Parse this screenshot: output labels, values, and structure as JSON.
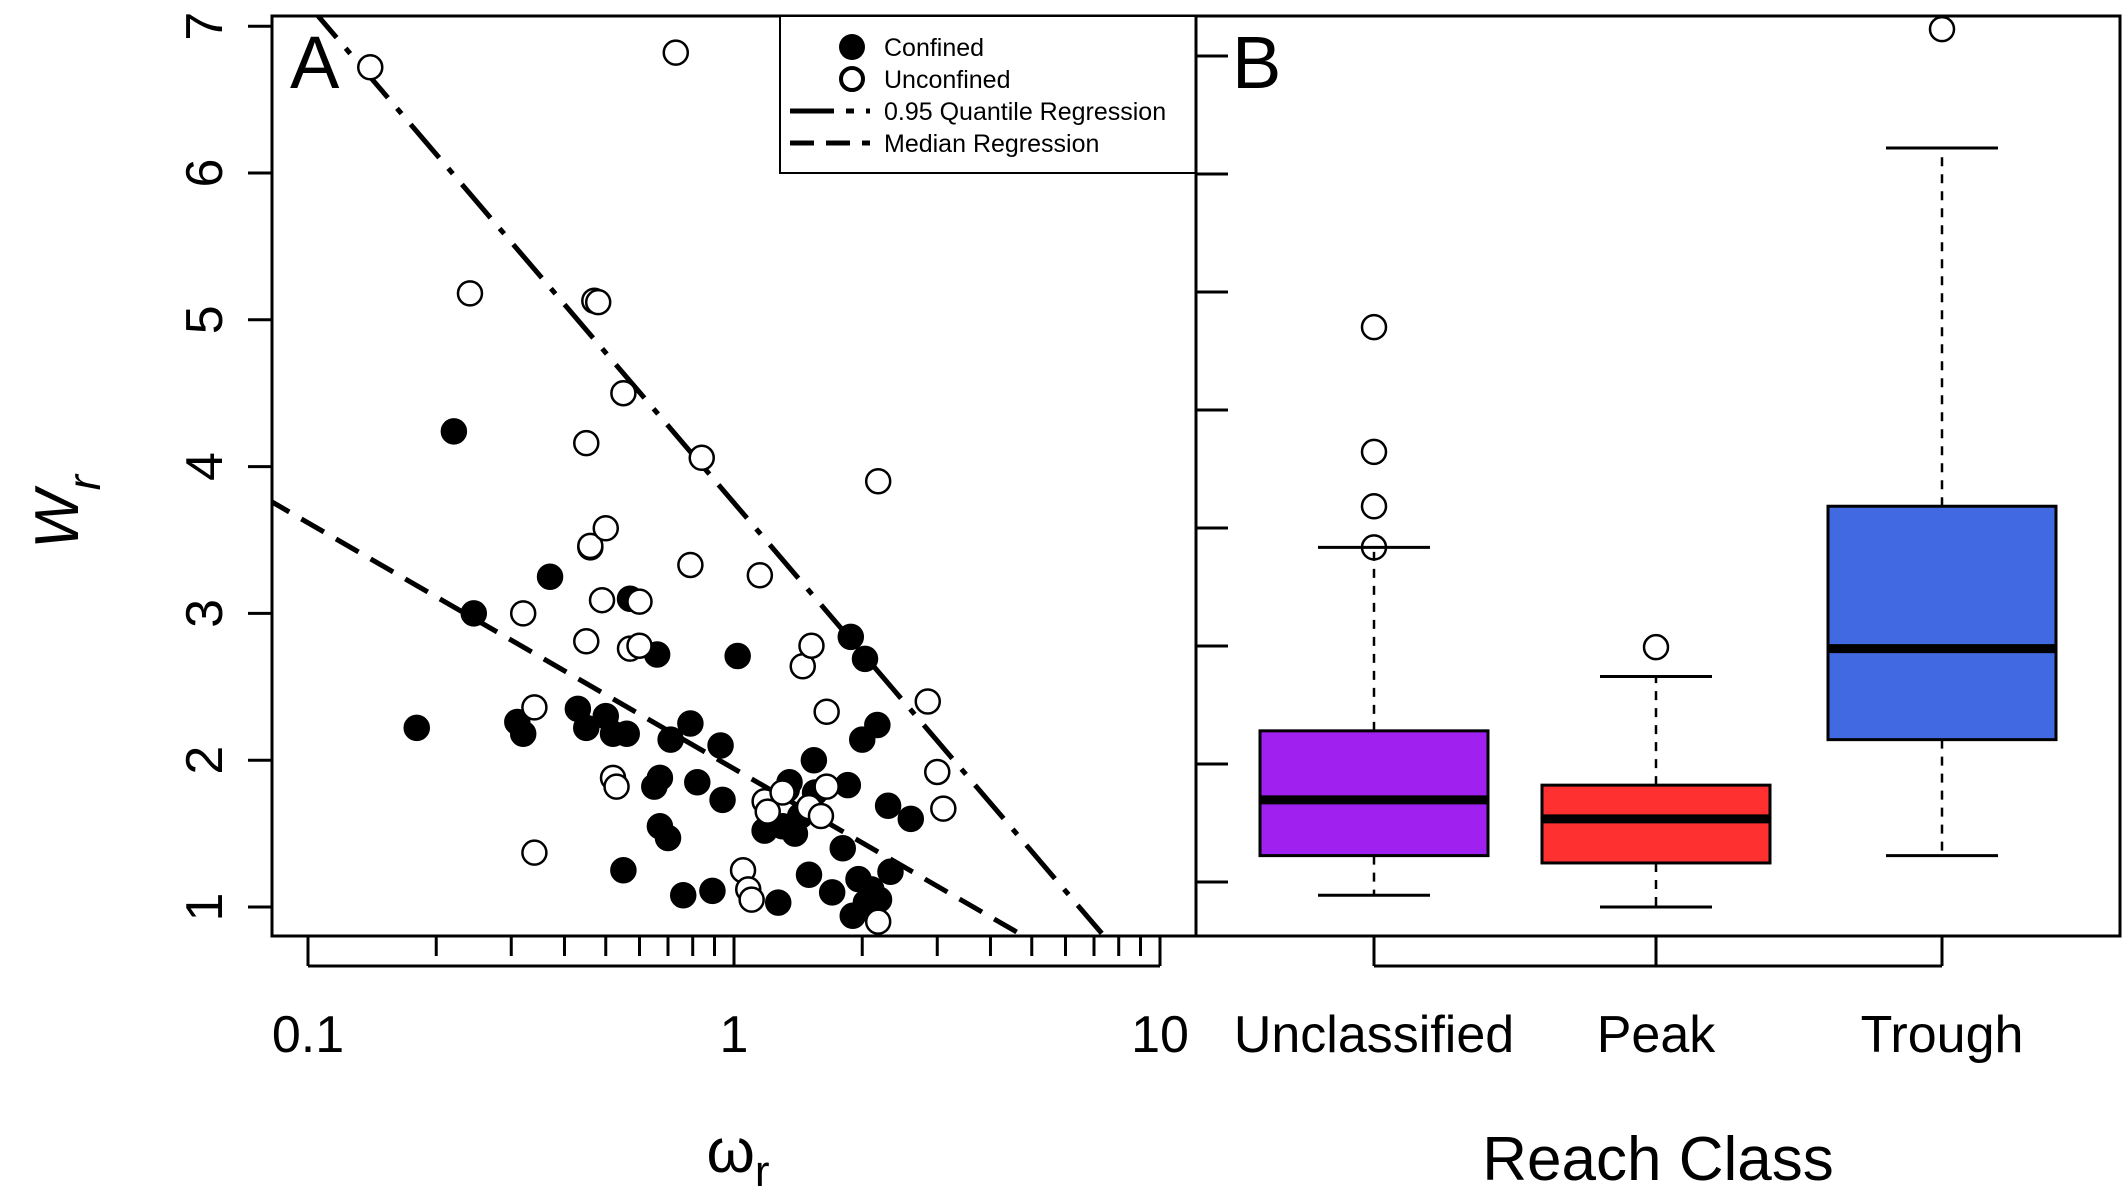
{
  "chart_data": [
    {
      "panel": "A",
      "type": "scatter",
      "xlabel_main": "ω",
      "xlabel_sub": "r",
      "ylabel_main": "W",
      "ylabel_sub": "r",
      "x_scale": "log",
      "xlim": [
        0.08,
        10
      ],
      "ylim": [
        0.8,
        7
      ],
      "x_ticks": [
        0.1,
        1,
        10
      ],
      "x_tick_labels": [
        "0.1",
        "1",
        "10"
      ],
      "y_ticks": [
        1,
        2,
        3,
        4,
        5,
        6,
        7
      ],
      "y_tick_labels": [
        "1",
        "2",
        "3",
        "4",
        "5",
        "6",
        "7"
      ],
      "legend_position": "top-right",
      "legend": [
        {
          "label": "Confined",
          "symbol": "filled-circle"
        },
        {
          "label": "Unconfined",
          "symbol": "open-circle"
        },
        {
          "label": "0.95 Quantile Regression",
          "symbol": "dash-dot-line"
        },
        {
          "label": "Median Regression",
          "symbol": "dashed-line"
        }
      ],
      "series": [
        {
          "name": "Confined",
          "marker": "filled",
          "points": [
            [
              0.18,
              2.22
            ],
            [
              0.22,
              4.24
            ],
            [
              0.245,
              3.0
            ],
            [
              0.31,
              2.26
            ],
            [
              0.32,
              2.18
            ],
            [
              0.37,
              3.25
            ],
            [
              0.43,
              2.35
            ],
            [
              0.45,
              2.22
            ],
            [
              0.46,
              3.45
            ],
            [
              0.5,
              2.3
            ],
            [
              0.52,
              2.18
            ],
            [
              0.55,
              1.25
            ],
            [
              0.56,
              2.18
            ],
            [
              0.57,
              3.1
            ],
            [
              0.65,
              1.82
            ],
            [
              0.66,
              2.72
            ],
            [
              0.67,
              1.88
            ],
            [
              0.67,
              1.55
            ],
            [
              0.7,
              1.47
            ],
            [
              0.71,
              2.14
            ],
            [
              0.76,
              1.08
            ],
            [
              0.79,
              2.25
            ],
            [
              0.82,
              1.85
            ],
            [
              0.89,
              1.11
            ],
            [
              0.93,
              2.1
            ],
            [
              0.94,
              1.73
            ],
            [
              1.02,
              2.71
            ],
            [
              1.18,
              1.52
            ],
            [
              1.23,
              1.56
            ],
            [
              1.27,
              1.03
            ],
            [
              1.3,
              1.55
            ],
            [
              1.33,
              1.8
            ],
            [
              1.35,
              1.85
            ],
            [
              1.39,
              1.5
            ],
            [
              1.43,
              1.62
            ],
            [
              1.5,
              1.22
            ],
            [
              1.54,
              2.0
            ],
            [
              1.55,
              1.78
            ],
            [
              1.7,
              1.1
            ],
            [
              1.8,
              1.4
            ],
            [
              1.85,
              1.83
            ],
            [
              1.88,
              2.84
            ],
            [
              1.9,
              0.94
            ],
            [
              1.96,
              1.19
            ],
            [
              2.0,
              2.14
            ],
            [
              2.03,
              2.69
            ],
            [
              2.04,
              1.03
            ],
            [
              2.1,
              1.12
            ],
            [
              2.17,
              2.24
            ],
            [
              2.19,
              1.05
            ],
            [
              2.3,
              1.69
            ],
            [
              2.33,
              1.24
            ],
            [
              2.6,
              1.6
            ]
          ]
        },
        {
          "name": "Unconfined",
          "marker": "open",
          "points": [
            [
              0.14,
              6.72
            ],
            [
              0.24,
              5.18
            ],
            [
              0.32,
              3.0
            ],
            [
              0.34,
              2.36
            ],
            [
              0.34,
              1.37
            ],
            [
              0.45,
              2.81
            ],
            [
              0.45,
              4.16
            ],
            [
              0.46,
              3.46
            ],
            [
              0.47,
              5.13
            ],
            [
              0.48,
              5.12
            ],
            [
              0.49,
              3.09
            ],
            [
              0.5,
              3.58
            ],
            [
              0.52,
              1.88
            ],
            [
              0.53,
              1.82
            ],
            [
              0.55,
              4.5
            ],
            [
              0.57,
              2.76
            ],
            [
              0.6,
              2.78
            ],
            [
              0.6,
              3.08
            ],
            [
              0.73,
              6.82
            ],
            [
              0.79,
              3.33
            ],
            [
              0.84,
              4.06
            ],
            [
              1.05,
              1.25
            ],
            [
              1.08,
              1.12
            ],
            [
              1.1,
              1.05
            ],
            [
              1.15,
              3.26
            ],
            [
              1.18,
              1.72
            ],
            [
              1.2,
              1.65
            ],
            [
              1.3,
              1.78
            ],
            [
              1.45,
              2.64
            ],
            [
              1.5,
              1.68
            ],
            [
              1.52,
              2.78
            ],
            [
              1.6,
              1.62
            ],
            [
              1.65,
              2.33
            ],
            [
              1.65,
              1.82
            ],
            [
              2.18,
              3.9
            ],
            [
              2.18,
              0.9
            ],
            [
              2.85,
              2.4
            ],
            [
              3.0,
              1.92
            ],
            [
              3.1,
              1.67
            ]
          ]
        }
      ],
      "lines": [
        {
          "name": "0.95 Quantile Regression",
          "style": "dash-dot",
          "points": [
            [
              0.1,
              7.15
            ],
            [
              7.3,
              0.82
            ]
          ]
        },
        {
          "name": "Median Regression",
          "style": "dashed",
          "points": [
            [
              0.08,
              3.78
            ],
            [
              4.8,
              0.8
            ]
          ]
        }
      ]
    },
    {
      "panel": "B",
      "type": "box",
      "xlabel": "Reach Class",
      "categories": [
        "Unclassified",
        "Peak",
        "Trough"
      ],
      "ylim": [
        0.8,
        7
      ],
      "y_ticks": [
        1,
        2,
        3,
        4,
        5,
        6,
        7
      ],
      "boxes": [
        {
          "category": "Unclassified",
          "color": "#a020f0",
          "whisker_low": 1.08,
          "q1": 1.35,
          "median": 1.73,
          "q3": 2.2,
          "whisker_high": 3.45,
          "outliers": [
            3.45,
            3.73,
            4.1,
            4.95
          ]
        },
        {
          "category": "Peak",
          "color": "#ff3030",
          "whisker_low": 1.0,
          "q1": 1.3,
          "median": 1.6,
          "q3": 1.83,
          "whisker_high": 2.57,
          "outliers": [
            2.77
          ]
        },
        {
          "category": "Trough",
          "color": "#4169e1",
          "whisker_low": 1.35,
          "q1": 2.14,
          "median": 2.76,
          "q3": 3.73,
          "whisker_high": 6.17,
          "outliers": [
            6.98
          ]
        }
      ]
    }
  ]
}
